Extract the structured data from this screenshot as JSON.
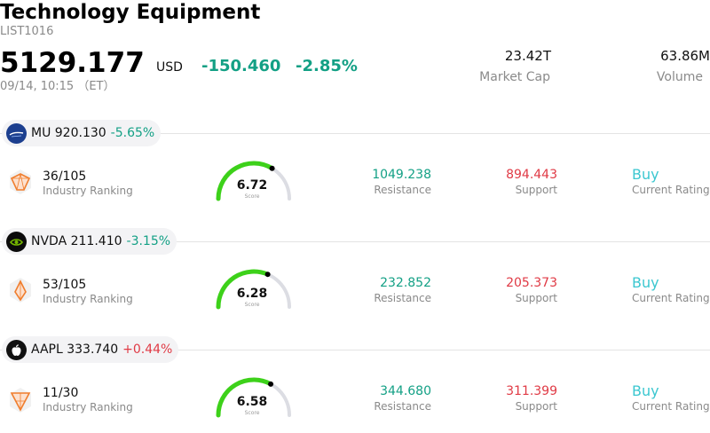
{
  "header": {
    "title": "Technology Equipment",
    "code": "LIST1016",
    "price": "5129.177",
    "currency": "USD",
    "change": "-150.460",
    "change_pct": "-2.85%",
    "time": "09/14, 10:15 （ET）",
    "market_cap_value": "23.42T",
    "market_cap_label": "Market Cap",
    "volume_value": "63.86M",
    "volume_label": "Volume"
  },
  "stocks": [
    {
      "symbol_text": "MU 920.130",
      "pct": "-5.65%",
      "rank": "36/105",
      "rank_label": "Industry Ranking",
      "score": "6.72",
      "score_label": "Score",
      "score_fraction": 0.672,
      "resistance": "1049.238",
      "resistance_label": "Resistance",
      "support": "894.443",
      "support_label": "Support",
      "rating": "Buy",
      "rating_label": "Current Rating"
    },
    {
      "symbol_text": "NVDA 211.410",
      "pct": "-3.15%",
      "rank": "53/105",
      "rank_label": "Industry Ranking",
      "score": "6.28",
      "score_label": "Score",
      "score_fraction": 0.628,
      "resistance": "232.852",
      "resistance_label": "Resistance",
      "support": "205.373",
      "support_label": "Support",
      "rating": "Buy",
      "rating_label": "Current Rating"
    },
    {
      "symbol_text": "AAPL 333.740",
      "pct": "+0.44%",
      "rank": "11/30",
      "rank_label": "Industry Ranking",
      "score": "6.58",
      "score_label": "Score",
      "score_fraction": 0.658,
      "resistance": "344.680",
      "resistance_label": "Resistance",
      "support": "311.399",
      "support_label": "Support",
      "rating": "Buy",
      "rating_label": "Current Rating"
    }
  ],
  "colors": {
    "positive_change": "#e03a45",
    "negative_change": "#13a085",
    "gauge_fill": "#3dd11a",
    "gauge_track": "#dcdde3",
    "rating": "#3bc7d0"
  }
}
